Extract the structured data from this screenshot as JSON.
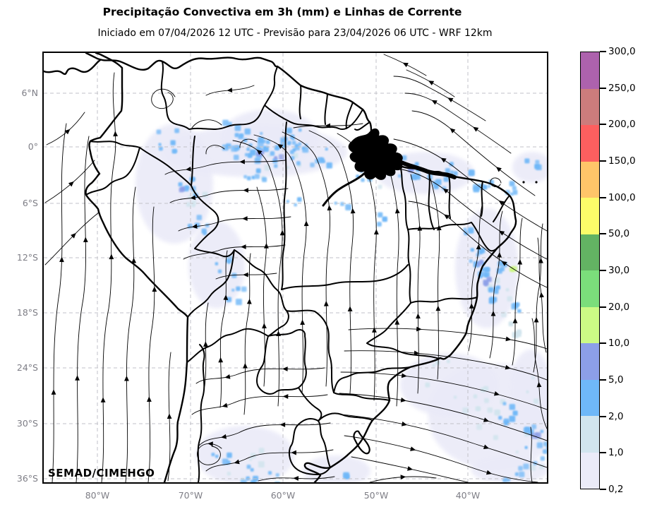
{
  "header": {
    "title": "Precipitação Convectiva em 3h (mm) e Linhas de Corrente",
    "subtitle": "Iniciado em 07/04/2026 12 UTC - Previsão para 23/04/2026 06 UTC - WRF 12km"
  },
  "map": {
    "watermark": "SEMAD/CIMEHGO",
    "lat_tick_labels": [
      "6°N",
      "0°",
      "6°S",
      "12°S",
      "18°S",
      "24°S",
      "30°S",
      "36°S"
    ],
    "lon_tick_labels": [
      "80°W",
      "70°W",
      "60°W",
      "50°W",
      "40°W"
    ]
  },
  "colorbar": {
    "unit": "mm",
    "tick_labels_top_to_bottom": [
      "300,0",
      "250,0",
      "200,0",
      "150,0",
      "100,0",
      "50,0",
      "30,0",
      "20,0",
      "10,0",
      "5,0",
      "2,0",
      "1,0",
      "0,2"
    ],
    "segments_bottom_to_top": [
      {
        "range": "0,2-1,0",
        "color": "#EBEBF8"
      },
      {
        "range": "1,0-2,0",
        "color": "#D2E5EE"
      },
      {
        "range": "2,0-5,0",
        "color": "#6FB8F8"
      },
      {
        "range": "5,0-10,0",
        "color": "#8C9FE8"
      },
      {
        "range": "10,0-20,0",
        "color": "#CCFA85"
      },
      {
        "range": "20,0-30,0",
        "color": "#7BDE7B"
      },
      {
        "range": "30,0-50,0",
        "color": "#63B363"
      },
      {
        "range": "50,0-100,0",
        "color": "#FCFC69"
      },
      {
        "range": "100,0-150,0",
        "color": "#FFC569"
      },
      {
        "range": "150,0-200,0",
        "color": "#FC5F5F"
      },
      {
        "range": "200,0-250,0",
        "color": "#CC7C7C"
      },
      {
        "range": "250,0-300,0",
        "color": "#AD62AD"
      }
    ]
  },
  "chart_data": {
    "type": "heatmap",
    "title": "Precipitação Convectiva em 3h (mm) e Linhas de Corrente",
    "subtitle": "Iniciado em 07/04/2026 12 UTC - Previsão para 23/04/2026 06 UTC - WRF 12km",
    "variable": "Precipitação Convectiva em 3h",
    "unit": "mm",
    "overlay": "Linhas de Corrente",
    "colorbar_levels_mm": [
      0.2,
      1,
      2,
      5,
      10,
      20,
      30,
      50,
      100,
      150,
      200,
      250,
      300
    ],
    "colorbar_colors": [
      "#EBEBF8",
      "#D2E5EE",
      "#6FB8F8",
      "#8C9FE8",
      "#CCFA85",
      "#7BDE7B",
      "#63B363",
      "#FCFC69",
      "#FFC569",
      "#FC5F5F",
      "#CC7C7C",
      "#AD62AD"
    ],
    "x_axis": {
      "ticks": [
        "80°W",
        "70°W",
        "60°W",
        "50°W",
        "40°W"
      ]
    },
    "y_axis": {
      "ticks": [
        "6°N",
        "0°",
        "6°S",
        "12°S",
        "18°S",
        "24°S",
        "30°S",
        "36°S"
      ]
    },
    "credit": "SEMAD/CIMEHGO"
  }
}
